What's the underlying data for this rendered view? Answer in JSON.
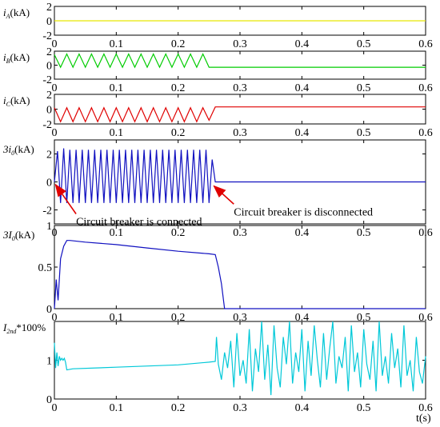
{
  "x_unit_label": "t(s)",
  "x_ticks": [
    "0",
    "0.1",
    "0.2",
    "0.3",
    "0.4",
    "0.5",
    "0.6"
  ],
  "chart_data": [
    {
      "type": "line",
      "ylabel_prefix": "i",
      "ylabel_sub": "A",
      "ylabel_suffix": "(kA)",
      "xlim": [
        0,
        0.6
      ],
      "ylim": [
        -2,
        2
      ],
      "yticks": [
        "2",
        "0",
        "-2"
      ],
      "color": "#e6e600",
      "series": [
        {
          "x": [
            0,
            0.6
          ],
          "y": [
            0,
            0
          ]
        }
      ]
    },
    {
      "type": "line",
      "ylabel_prefix": "i",
      "ylabel_sub": "B",
      "ylabel_suffix": "(kA)",
      "xlim": [
        0,
        0.6
      ],
      "ylim": [
        -2,
        2
      ],
      "yticks": [
        "2",
        "0",
        "-2"
      ],
      "color": "#00cc00",
      "series": [
        {
          "x": [
            0,
            0.01,
            0.02,
            0.03,
            0.04,
            0.05,
            0.06,
            0.07,
            0.08,
            0.09,
            0.1,
            0.11,
            0.12,
            0.13,
            0.14,
            0.15,
            0.16,
            0.17,
            0.18,
            0.19,
            0.2,
            0.21,
            0.22,
            0.23,
            0.24,
            0.25,
            0.26,
            0.6
          ],
          "y": [
            1.5,
            -0.3,
            1.6,
            -0.3,
            1.6,
            -0.3,
            1.6,
            -0.3,
            1.6,
            -0.3,
            1.6,
            -0.3,
            1.6,
            -0.3,
            1.6,
            -0.3,
            1.6,
            -0.3,
            1.6,
            -0.3,
            1.6,
            -0.3,
            1.6,
            -0.3,
            1.6,
            -0.3,
            -0.3,
            -0.3
          ]
        }
      ]
    },
    {
      "type": "line",
      "ylabel_prefix": "i",
      "ylabel_sub": "C",
      "ylabel_suffix": "(kA)",
      "xlim": [
        0,
        0.6
      ],
      "ylim": [
        -2,
        2
      ],
      "yticks": [
        "2",
        "0",
        "-2"
      ],
      "color": "#e00000",
      "series": [
        {
          "x": [
            0,
            0.01,
            0.02,
            0.03,
            0.04,
            0.05,
            0.06,
            0.07,
            0.08,
            0.09,
            0.1,
            0.11,
            0.12,
            0.13,
            0.14,
            0.15,
            0.16,
            0.17,
            0.18,
            0.19,
            0.2,
            0.21,
            0.22,
            0.23,
            0.24,
            0.25,
            0.26,
            0.6
          ],
          "y": [
            0.2,
            -1.7,
            0.2,
            -1.7,
            0.2,
            -1.7,
            0.2,
            -1.7,
            0.2,
            -1.7,
            0.2,
            -1.7,
            0.2,
            -1.7,
            0.2,
            -1.7,
            0.2,
            -1.7,
            0.2,
            -1.7,
            0.2,
            -1.7,
            0.2,
            -1.7,
            0.2,
            -1.5,
            0.3,
            0.3
          ]
        }
      ]
    },
    {
      "type": "line",
      "ylabel_prefix": "3i",
      "ylabel_sub": "0",
      "ylabel_suffix": "(kA)",
      "xlim": [
        0,
        0.6
      ],
      "ylim": [
        -3,
        3
      ],
      "yticks": [
        "2",
        "0",
        "-2"
      ],
      "color": "#1010c0",
      "series": [
        {
          "x": [
            0,
            0.005,
            0.01,
            0.015,
            0.02,
            0.025,
            0.03,
            0.035,
            0.04,
            0.045,
            0.05,
            0.055,
            0.06,
            0.065,
            0.07,
            0.075,
            0.08,
            0.085,
            0.09,
            0.095,
            0.1,
            0.105,
            0.11,
            0.115,
            0.12,
            0.125,
            0.13,
            0.135,
            0.14,
            0.145,
            0.15,
            0.155,
            0.16,
            0.165,
            0.17,
            0.175,
            0.18,
            0.185,
            0.19,
            0.195,
            0.2,
            0.205,
            0.21,
            0.215,
            0.22,
            0.225,
            0.23,
            0.235,
            0.24,
            0.245,
            0.25,
            0.255,
            0.26,
            0.6
          ],
          "y": [
            0,
            2.2,
            -1.5,
            2.4,
            -1.5,
            2.3,
            -1.5,
            2.3,
            -1.5,
            2.3,
            -1.5,
            2.3,
            -1.5,
            2.3,
            -1.5,
            2.3,
            -1.5,
            2.3,
            -1.5,
            2.3,
            -1.5,
            2.3,
            -1.5,
            2.3,
            -1.5,
            2.3,
            -1.5,
            2.3,
            -1.5,
            2.3,
            -1.5,
            2.3,
            -1.5,
            2.3,
            -1.5,
            2.3,
            -1.5,
            2.3,
            -1.5,
            2.3,
            -1.5,
            2.3,
            -1.5,
            2.3,
            -1.5,
            2.3,
            -1.5,
            2.3,
            -1.5,
            2.3,
            -1.5,
            1.6,
            0,
            0
          ]
        }
      ],
      "annotations": [
        {
          "text": "Circuit breaker is connected",
          "x": 0.002,
          "y": -0.2,
          "tx": 0.035,
          "ty": -2.4
        },
        {
          "text": "Circuit breaker is disconnected",
          "x": 0.258,
          "y": -0.3,
          "tx": 0.29,
          "ty": -1.7
        }
      ]
    },
    {
      "type": "line",
      "ylabel_prefix": "3I",
      "ylabel_sub": "0",
      "ylabel_suffix": "(kA)",
      "xlim": [
        0,
        0.6
      ],
      "ylim": [
        0,
        1
      ],
      "yticks": [
        "1",
        "0.5",
        "0"
      ],
      "color": "#1010c0",
      "series": [
        {
          "x": [
            0,
            0.003,
            0.006,
            0.01,
            0.015,
            0.02,
            0.025,
            0.05,
            0.1,
            0.15,
            0.2,
            0.25,
            0.26,
            0.265,
            0.27,
            0.275,
            0.6
          ],
          "y": [
            0,
            0.35,
            0.1,
            0.6,
            0.75,
            0.82,
            0.82,
            0.8,
            0.77,
            0.73,
            0.69,
            0.66,
            0.65,
            0.5,
            0.3,
            0,
            0
          ]
        }
      ]
    },
    {
      "type": "line",
      "ylabel_prefix": "I",
      "ylabel_sub": "2nd",
      "ylabel_suffix": "*100%",
      "xlim": [
        0,
        0.6
      ],
      "ylim": [
        0,
        2
      ],
      "yticks": [
        "1",
        "0"
      ],
      "color": "#00c8d8",
      "series": [
        {
          "x": [
            0,
            0.002,
            0.004,
            0.006,
            0.008,
            0.01,
            0.012,
            0.014,
            0.016,
            0.018,
            0.02,
            0.03,
            0.1,
            0.2,
            0.25,
            0.26,
            0.262,
            0.265,
            0.27,
            0.275,
            0.28,
            0.285,
            0.29,
            0.295,
            0.3,
            0.305,
            0.31,
            0.315,
            0.32,
            0.325,
            0.33,
            0.335,
            0.34,
            0.345,
            0.35,
            0.355,
            0.36,
            0.365,
            0.37,
            0.375,
            0.38,
            0.385,
            0.39,
            0.395,
            0.4,
            0.405,
            0.41,
            0.415,
            0.42,
            0.425,
            0.43,
            0.435,
            0.44,
            0.445,
            0.45,
            0.455,
            0.46,
            0.465,
            0.47,
            0.475,
            0.48,
            0.485,
            0.49,
            0.495,
            0.5,
            0.505,
            0.51,
            0.515,
            0.52,
            0.525,
            0.53,
            0.535,
            0.54,
            0.545,
            0.55,
            0.555,
            0.56,
            0.565,
            0.57,
            0.575,
            0.58,
            0.585,
            0.59,
            0.595,
            0.6
          ],
          "y": [
            1.45,
            0.8,
            1.2,
            0.85,
            1.1,
            1.0,
            1.05,
            1.0,
            1.05,
            0.95,
            0.75,
            0.78,
            0.82,
            0.88,
            0.95,
            0.97,
            1.6,
            0.9,
            0.5,
            1.2,
            0.8,
            1.5,
            0.3,
            1.7,
            0.6,
            1.0,
            0.4,
            1.8,
            0.2,
            1.3,
            0.7,
            2.0,
            0.5,
            1.4,
            0.1,
            1.9,
            0.8,
            0.3,
            1.6,
            0.9,
            2.0,
            0.4,
            1.2,
            0.7,
            1.8,
            0.2,
            1.5,
            0.6,
            1.9,
            1.0,
            0.3,
            1.7,
            0.5,
            1.3,
            2.0,
            0.4,
            1.1,
            0.8,
            1.6,
            0.2,
            1.9,
            0.7,
            1.2,
            0.3,
            1.8,
            0.9,
            0.5,
            1.5,
            0.2,
            2.0,
            0.6,
            1.1,
            0.4,
            1.7,
            0.8,
            1.3,
            0.3,
            1.9,
            0.6,
            1.0,
            0.2,
            1.6,
            0.7,
            0.4,
            1.1
          ]
        }
      ]
    }
  ]
}
